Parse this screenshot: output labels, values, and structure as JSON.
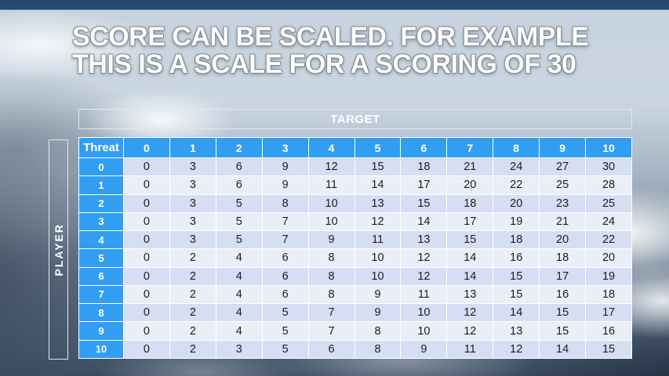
{
  "slide": {
    "title_line1": "SCORE CAN BE SCALED. FOR EXAMPLE",
    "title_line2": "THIS IS A SCALE FOR A SCORING OF 30"
  },
  "table": {
    "target_label": "TARGET",
    "player_label": "PLAYER",
    "corner_label": "Threat",
    "column_headers": [
      "0",
      "1",
      "2",
      "3",
      "4",
      "5",
      "6",
      "7",
      "8",
      "9",
      "10"
    ],
    "rows": [
      {
        "label": "0",
        "values": [
          0,
          3,
          6,
          9,
          12,
          15,
          18,
          21,
          24,
          27,
          30
        ]
      },
      {
        "label": "1",
        "values": [
          0,
          3,
          6,
          9,
          11,
          14,
          17,
          20,
          22,
          25,
          28
        ]
      },
      {
        "label": "2",
        "values": [
          0,
          3,
          5,
          8,
          10,
          13,
          15,
          18,
          20,
          23,
          25
        ]
      },
      {
        "label": "3",
        "values": [
          0,
          3,
          5,
          7,
          10,
          12,
          14,
          17,
          19,
          21,
          24
        ]
      },
      {
        "label": "4",
        "values": [
          0,
          3,
          5,
          7,
          9,
          11,
          13,
          15,
          18,
          20,
          22
        ]
      },
      {
        "label": "5",
        "values": [
          0,
          2,
          4,
          6,
          8,
          10,
          12,
          14,
          16,
          18,
          20
        ]
      },
      {
        "label": "6",
        "values": [
          0,
          2,
          4,
          6,
          8,
          10,
          12,
          14,
          15,
          17,
          19
        ]
      },
      {
        "label": "7",
        "values": [
          0,
          2,
          4,
          6,
          8,
          9,
          11,
          13,
          15,
          16,
          18
        ]
      },
      {
        "label": "8",
        "values": [
          0,
          2,
          4,
          5,
          7,
          9,
          10,
          12,
          14,
          15,
          17
        ]
      },
      {
        "label": "9",
        "values": [
          0,
          2,
          4,
          5,
          7,
          8,
          10,
          12,
          13,
          15,
          16
        ]
      },
      {
        "label": "10",
        "values": [
          0,
          2,
          3,
          5,
          6,
          8,
          9,
          11,
          12,
          14,
          15
        ]
      }
    ]
  },
  "colors": {
    "header_blue": "#319ef2",
    "band_dark": "#d5def2",
    "band_light": "#eaeef9",
    "body_text": "#1d1d1f",
    "title_fill": "#fdfdfd"
  }
}
